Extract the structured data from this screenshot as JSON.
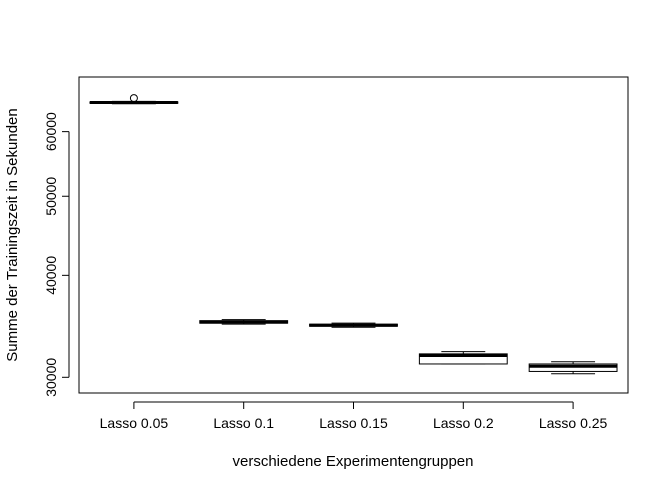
{
  "chart_data": {
    "type": "boxplot",
    "title": "",
    "xlabel": "verschiedene Experimentengruppen",
    "ylabel": "Summe der Trainingszeit in Sekunden",
    "y_scale": "log",
    "ylim": [
      28700,
      70000
    ],
    "y_ticks": [
      30000,
      40000,
      50000,
      60000
    ],
    "y_tick_labels": [
      "30000",
      "40000",
      "50000",
      "60000"
    ],
    "categories": [
      "Lasso 0.05",
      "Lasso 0.1",
      "Lasso 0.15",
      "Lasso 0.2",
      "Lasso 0.25"
    ],
    "boxes": [
      {
        "whisker_low": 64900,
        "q1": 65000,
        "median": 65150,
        "q3": 65250,
        "whisker_high": 65350,
        "outliers": [
          65950
        ]
      },
      {
        "whisker_low": 34850,
        "q1": 34950,
        "median": 35050,
        "q3": 35200,
        "whisker_high": 35300,
        "outliers": []
      },
      {
        "whisker_low": 34550,
        "q1": 34650,
        "median": 34750,
        "q3": 34850,
        "whisker_high": 34950,
        "outliers": []
      },
      {
        "whisker_low": 31150,
        "q1": 31150,
        "median": 31900,
        "q3": 32050,
        "whisker_high": 32250,
        "outliers": []
      },
      {
        "whisker_low": 30300,
        "q1": 30500,
        "median": 30950,
        "q3": 31150,
        "whisker_high": 31350,
        "outliers": []
      }
    ]
  }
}
